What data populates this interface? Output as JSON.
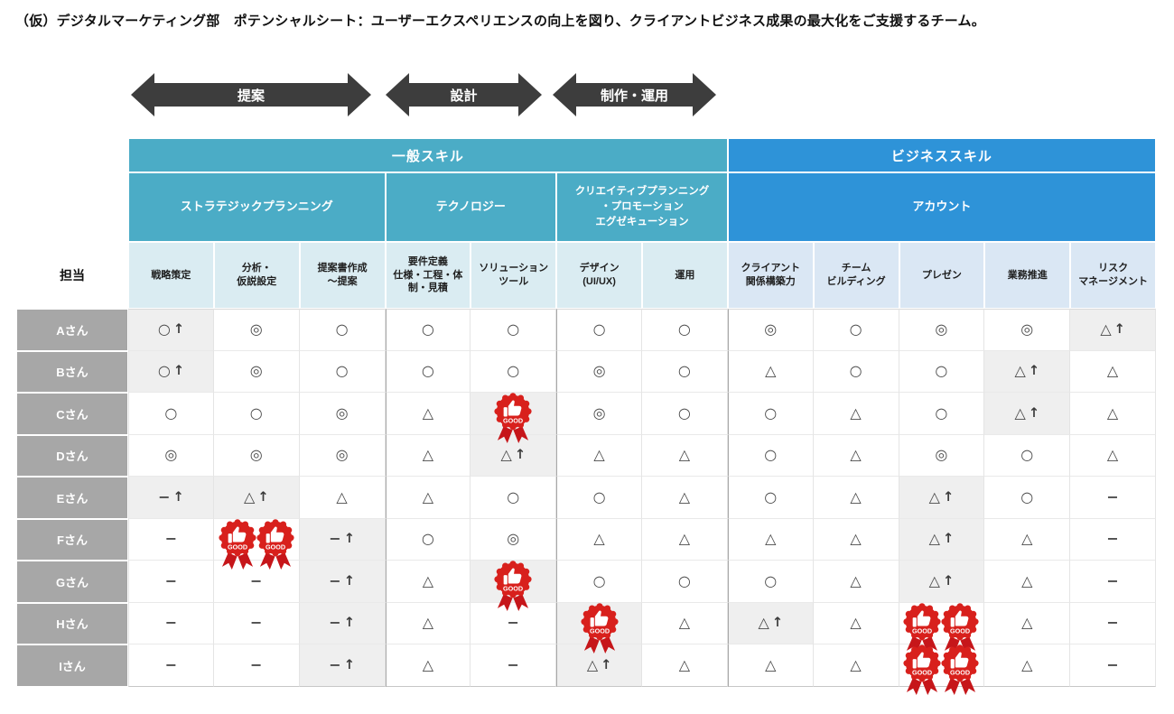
{
  "title": "（仮）デジタルマーケティング部　ポテンシャルシート：ユーザーエクスペリエンスの向上を図り、クライアントビジネス成果の最大化をご支援するチーム。",
  "process_arrows": [
    {
      "label": "提案"
    },
    {
      "label": "設計"
    },
    {
      "label": "制作・運用"
    }
  ],
  "colors": {
    "teal_header": "#4BACC6",
    "blue_header": "#2E93D8",
    "light_teal_header": "#DAECF2",
    "light_blue_header": "#DAE7F4",
    "row_label_bg": "#A7A7A7",
    "highlight_cell_bg": "#EFEFEF",
    "badge_red": "#D8201C",
    "arrow_dark": "#3D3D3D"
  },
  "table": {
    "corner_label": "担当",
    "groups": [
      {
        "label": "一般スキル",
        "span": 7,
        "theme": "t"
      },
      {
        "label": "ビジネススキル",
        "span": 5,
        "theme": "b"
      }
    ],
    "subgroups": [
      {
        "label": "ストラテジックプランニング",
        "span": 3,
        "theme": "t",
        "small": false
      },
      {
        "label": "テクノロジー",
        "span": 2,
        "theme": "t",
        "small": false
      },
      {
        "label": "クリエイティブプランニング\n・プロモーション\nエグゼキューション",
        "span": 2,
        "theme": "t",
        "small": true
      },
      {
        "label": "アカウント",
        "span": 5,
        "theme": "b",
        "small": false
      }
    ],
    "columns": [
      {
        "label": "戦略策定",
        "theme": "tl"
      },
      {
        "label": "分析・\n仮説設定",
        "theme": "tl"
      },
      {
        "label": "提案書作成\n～提案",
        "theme": "tl"
      },
      {
        "label": "要件定義\n仕様・工程・体\n制・見積",
        "theme": "tl"
      },
      {
        "label": "ソリューション\nツール",
        "theme": "tl"
      },
      {
        "label": "デザイン\n(UI/UX)",
        "theme": "tl"
      },
      {
        "label": "運用",
        "theme": "tl"
      },
      {
        "label": "クライアント\n関係構築力",
        "theme": "bl"
      },
      {
        "label": "チーム\nビルディング",
        "theme": "bl"
      },
      {
        "label": "プレゼン",
        "theme": "bl"
      },
      {
        "label": "業務推進",
        "theme": "bl"
      },
      {
        "label": "リスク\nマネージメント",
        "theme": "bl"
      }
    ],
    "badge_label": "GOOD",
    "rows": [
      {
        "name": "Aさん",
        "cells": [
          {
            "v": "○↑",
            "hl": true
          },
          {
            "v": "◎"
          },
          {
            "v": "○"
          },
          {
            "v": "○"
          },
          {
            "v": "○"
          },
          {
            "v": "○"
          },
          {
            "v": "○"
          },
          {
            "v": "◎"
          },
          {
            "v": "○"
          },
          {
            "v": "◎"
          },
          {
            "v": "◎"
          },
          {
            "v": "△↑",
            "hl": true
          }
        ]
      },
      {
        "name": "Bさん",
        "cells": [
          {
            "v": "○↑",
            "hl": true
          },
          {
            "v": "◎"
          },
          {
            "v": "○"
          },
          {
            "v": "○"
          },
          {
            "v": "○"
          },
          {
            "v": "◎"
          },
          {
            "v": "○"
          },
          {
            "v": "△"
          },
          {
            "v": "○"
          },
          {
            "v": "○"
          },
          {
            "v": "△↑",
            "hl": true
          },
          {
            "v": "△"
          }
        ]
      },
      {
        "name": "Cさん",
        "cells": [
          {
            "v": "○"
          },
          {
            "v": "○"
          },
          {
            "v": "◎"
          },
          {
            "v": "△"
          },
          {
            "v": "GOOD",
            "hl": true
          },
          {
            "v": "◎"
          },
          {
            "v": "○"
          },
          {
            "v": "○"
          },
          {
            "v": "△"
          },
          {
            "v": "○"
          },
          {
            "v": "△↑",
            "hl": true
          },
          {
            "v": "△"
          }
        ]
      },
      {
        "name": "Dさん",
        "cells": [
          {
            "v": "◎"
          },
          {
            "v": "◎"
          },
          {
            "v": "◎"
          },
          {
            "v": "△"
          },
          {
            "v": "△↑",
            "hl": true
          },
          {
            "v": "△"
          },
          {
            "v": "△"
          },
          {
            "v": "○"
          },
          {
            "v": "△"
          },
          {
            "v": "◎"
          },
          {
            "v": "○"
          },
          {
            "v": "△"
          }
        ]
      },
      {
        "name": "Eさん",
        "cells": [
          {
            "v": "−↑",
            "hl": true
          },
          {
            "v": "△↑",
            "hl": true
          },
          {
            "v": "△"
          },
          {
            "v": "△"
          },
          {
            "v": "○"
          },
          {
            "v": "○"
          },
          {
            "v": "△"
          },
          {
            "v": "○"
          },
          {
            "v": "△"
          },
          {
            "v": "△↑",
            "hl": true
          },
          {
            "v": "○"
          },
          {
            "v": "−"
          }
        ]
      },
      {
        "name": "Fさん",
        "cells": [
          {
            "v": "−"
          },
          {
            "v": "GOOD×2"
          },
          {
            "v": "−↑",
            "hl": true
          },
          {
            "v": "○"
          },
          {
            "v": "◎"
          },
          {
            "v": "△"
          },
          {
            "v": "△"
          },
          {
            "v": "△"
          },
          {
            "v": "△"
          },
          {
            "v": "△↑",
            "hl": true
          },
          {
            "v": "△"
          },
          {
            "v": "−"
          }
        ]
      },
      {
        "name": "Gさん",
        "cells": [
          {
            "v": "−"
          },
          {
            "v": "−"
          },
          {
            "v": "−↑",
            "hl": true
          },
          {
            "v": "△"
          },
          {
            "v": "GOOD",
            "hl": true
          },
          {
            "v": "○"
          },
          {
            "v": "○"
          },
          {
            "v": "○"
          },
          {
            "v": "△"
          },
          {
            "v": "△↑",
            "hl": true
          },
          {
            "v": "△"
          },
          {
            "v": "−"
          }
        ]
      },
      {
        "name": "Hさん",
        "cells": [
          {
            "v": "−"
          },
          {
            "v": "−"
          },
          {
            "v": "−↑",
            "hl": true
          },
          {
            "v": "△"
          },
          {
            "v": "−"
          },
          {
            "v": "GOOD",
            "hl": true
          },
          {
            "v": "△"
          },
          {
            "v": "△↑",
            "hl": true
          },
          {
            "v": "△"
          },
          {
            "v": "GOOD×2"
          },
          {
            "v": "△"
          },
          {
            "v": "−"
          }
        ]
      },
      {
        "name": "Iさん",
        "cells": [
          {
            "v": "−"
          },
          {
            "v": "−"
          },
          {
            "v": "−↑",
            "hl": true
          },
          {
            "v": "△"
          },
          {
            "v": "−"
          },
          {
            "v": "△↑",
            "hl": true
          },
          {
            "v": "△"
          },
          {
            "v": "△"
          },
          {
            "v": "△"
          },
          {
            "v": "GOOD×2"
          },
          {
            "v": "△"
          },
          {
            "v": "−"
          }
        ]
      }
    ]
  }
}
